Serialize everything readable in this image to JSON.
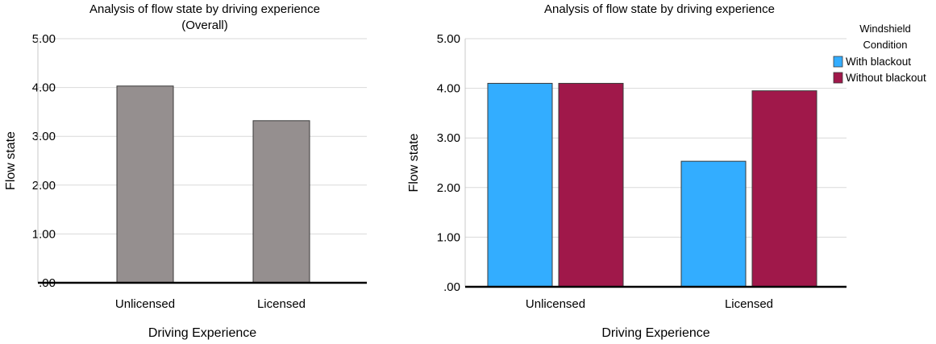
{
  "chart_data": [
    {
      "type": "bar",
      "title": "Analysis of flow state by driving experience",
      "subtitle": "(Overall)",
      "xlabel": "Driving Experience",
      "ylabel": "Flow state",
      "categories": [
        "Unlicensed",
        "Licensed"
      ],
      "series": [
        {
          "values": [
            4.03,
            3.32
          ],
          "color": "#958f8f"
        }
      ],
      "yticks": [
        ".00",
        "1.00",
        "2.00",
        "3.00",
        "4.00",
        "5.00"
      ],
      "ylim": [
        0,
        5
      ],
      "grid": true
    },
    {
      "type": "bar",
      "title": "Analysis of flow state by driving experience",
      "xlabel": "Driving Experience",
      "ylabel": "Flow state",
      "categories": [
        "Unlicensed",
        "Licensed"
      ],
      "series": [
        {
          "name": "With blackout",
          "values": [
            4.1,
            2.53
          ],
          "color": "#33adff"
        },
        {
          "name": "Without blackout",
          "values": [
            4.1,
            3.95
          ],
          "color": "#a0184a"
        }
      ],
      "legend_title": "Windshield Condition",
      "legend_position": "top-right",
      "yticks": [
        ".00",
        "1.00",
        "2.00",
        "3.00",
        "4.00",
        "5.00"
      ],
      "ylim": [
        0,
        5
      ],
      "grid": true
    }
  ]
}
